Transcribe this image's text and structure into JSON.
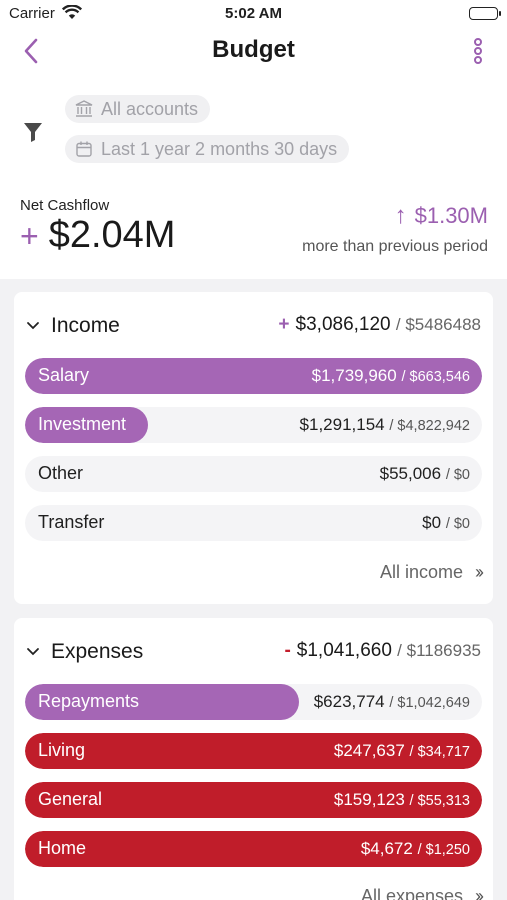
{
  "status_bar": {
    "carrier": "Carrier",
    "time": "5:02 AM"
  },
  "nav": {
    "title": "Budget",
    "back_icon": "chevron-left-icon",
    "more_icon": "more-vertical-icon"
  },
  "filters": {
    "accounts": "All accounts",
    "period": "Last 1 year 2 months 30 days"
  },
  "net_cashflow": {
    "label": "Net Cashflow",
    "sign": "+",
    "value": "$2.04M",
    "delta": "$1.30M",
    "delta_direction": "up",
    "note": "more than previous period"
  },
  "income": {
    "title": "Income",
    "sign": "+",
    "total": "$3,086,120",
    "budget": "/ $5486488",
    "rows": [
      {
        "label": "Salary",
        "amount": "$1,739,960",
        "budget": "/ $663,546",
        "fill": 1.0
      },
      {
        "label": "Investment",
        "amount": "$1,291,154",
        "budget": "/ $4,822,942",
        "fill": 0.27
      },
      {
        "label": "Other",
        "amount": "$55,006",
        "budget": "/ $0",
        "fill": 0
      },
      {
        "label": "Transfer",
        "amount": "$0",
        "budget": "/ $0",
        "fill": 0
      }
    ],
    "link": "All income"
  },
  "expenses": {
    "title": "Expenses",
    "sign": "-",
    "total": "$1,041,660",
    "budget": "/ $1186935",
    "rows": [
      {
        "label": "Repayments",
        "amount": "$623,774",
        "budget": "/ $1,042,649",
        "fill": 0.6
      },
      {
        "label": "Living",
        "amount": "$247,637",
        "budget": "/ $34,717",
        "fill": 1.0
      },
      {
        "label": "General",
        "amount": "$159,123",
        "budget": "/ $55,313",
        "fill": 1.0
      },
      {
        "label": "Home",
        "amount": "$4,672",
        "budget": "/ $1,250",
        "fill": 1.0
      }
    ],
    "link": "All expenses"
  },
  "colors": {
    "accent": "#9b5fb0",
    "income_bar": "#a566b5",
    "over_budget": "#c01d2a"
  }
}
